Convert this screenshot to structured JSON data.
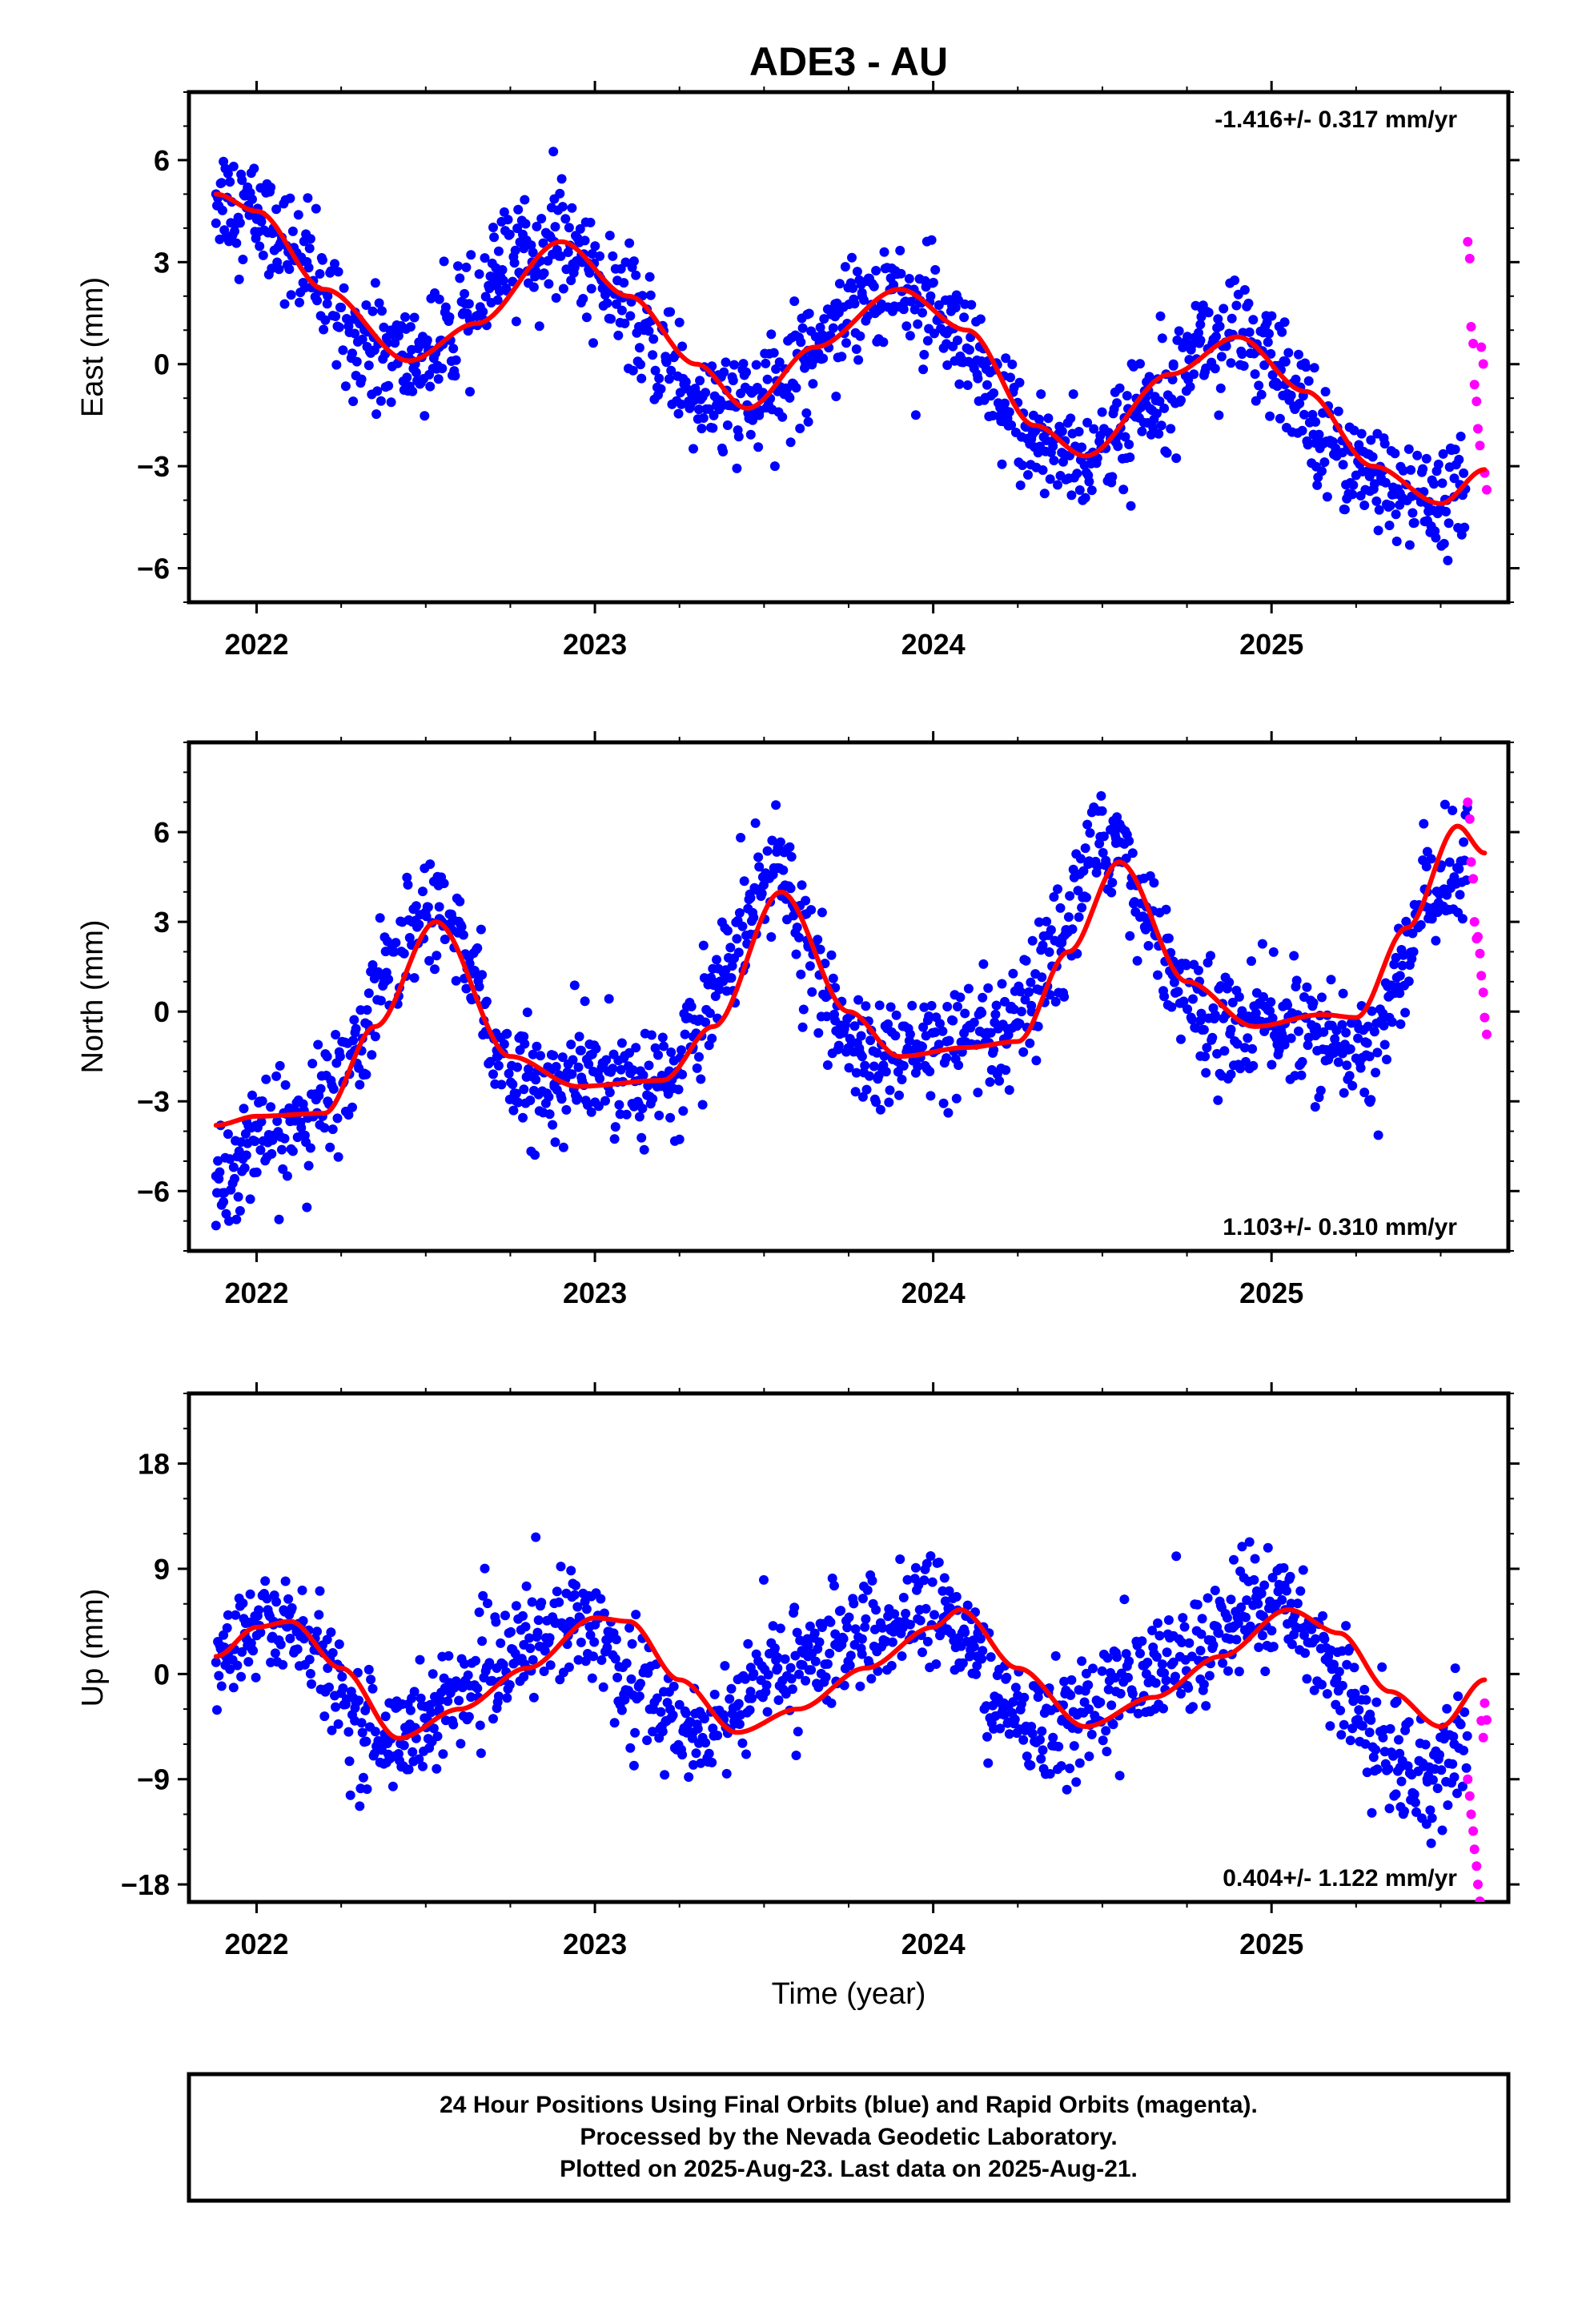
{
  "title": "ADE3 - AU",
  "footer": {
    "lines": [
      "24 Hour Positions Using Final Orbits (blue) and Rapid Orbits (magenta).",
      "Processed by the Nevada Geodetic Laboratory.",
      "Plotted on 2025-Aug-23. Last data on 2025-Aug-21."
    ]
  },
  "colors": {
    "final": "#0000ff",
    "rapid": "#ff00ff",
    "fit": "#ff0000",
    "frame": "#000000"
  },
  "chart_data": [
    {
      "type": "scatter",
      "ylabel": "East (mm)",
      "xlabel": "",
      "rate_label": "-1.416+/- 0.317 mm/yr",
      "rate_position": "top-right",
      "xlim": [
        2021.8,
        2025.7
      ],
      "ylim": [
        -7,
        8
      ],
      "xticks": [
        "2022",
        "2023",
        "2024",
        "2025"
      ],
      "yticks": [
        "6",
        "3",
        "0",
        "-3",
        "-6"
      ],
      "grid": false,
      "series": [
        {
          "role": "final",
          "x": [
            2021.88,
            2021.97,
            2022.05,
            2022.13,
            2022.21,
            2022.29,
            2022.38,
            2022.46,
            2022.54,
            2022.63,
            2022.71,
            2022.79,
            2022.88,
            2022.96,
            2023.04,
            2023.13,
            2023.21,
            2023.29,
            2023.38,
            2023.46,
            2023.54,
            2023.63,
            2023.71,
            2023.79,
            2023.88,
            2023.96,
            2024.04,
            2024.13,
            2024.21,
            2024.29,
            2024.38,
            2024.46,
            2024.54,
            2024.63,
            2024.71,
            2024.79,
            2024.88,
            2024.96,
            2025.04,
            2025.13,
            2025.21,
            2025.29,
            2025.38,
            2025.46,
            2025.54
          ],
          "y": [
            5.0,
            4.6,
            4.0,
            3.0,
            2.0,
            0.9,
            0.3,
            0.1,
            0.5,
            1.3,
            2.6,
            3.4,
            3.6,
            3.2,
            2.2,
            1.1,
            0.1,
            -0.8,
            -1.2,
            -1.3,
            -0.8,
            0.4,
            1.4,
            2.0,
            2.2,
            1.8,
            0.9,
            -0.3,
            -1.4,
            -2.2,
            -2.6,
            -2.7,
            -2.3,
            -1.2,
            0.0,
            0.7,
            0.8,
            0.4,
            -0.6,
            -1.7,
            -2.6,
            -3.3,
            -3.8,
            -4.1,
            -3.9
          ]
        },
        {
          "role": "rapid",
          "x": [
            2025.58,
            2025.59,
            2025.6,
            2025.61,
            2025.62,
            2025.63
          ],
          "y": [
            3.6,
            1.1,
            -0.6,
            -1.9,
            0.5,
            -3.2
          ]
        },
        {
          "role": "fit",
          "x": [
            2021.88,
            2022.0,
            2022.2,
            2022.45,
            2022.65,
            2022.9,
            2023.1,
            2023.3,
            2023.45,
            2023.65,
            2023.9,
            2024.1,
            2024.3,
            2024.45,
            2024.7,
            2024.9,
            2025.1,
            2025.3,
            2025.5,
            2025.63
          ],
          "y": [
            5.0,
            4.5,
            2.2,
            0.1,
            1.2,
            3.6,
            2.0,
            0.0,
            -1.3,
            0.5,
            2.2,
            1.0,
            -1.8,
            -2.7,
            -0.3,
            0.8,
            -0.8,
            -3.0,
            -4.1,
            -3.1
          ]
        }
      ]
    },
    {
      "type": "scatter",
      "ylabel": "North (mm)",
      "xlabel": "",
      "rate_label": "1.103+/- 0.310 mm/yr",
      "rate_position": "bottom-right",
      "xlim": [
        2021.8,
        2025.7
      ],
      "ylim": [
        -8,
        9
      ],
      "xticks": [
        "2022",
        "2023",
        "2024",
        "2025"
      ],
      "yticks": [
        "6",
        "3",
        "0",
        "-3",
        "-6"
      ],
      "grid": false,
      "series": [
        {
          "role": "final",
          "x": [
            2021.88,
            2021.97,
            2022.05,
            2022.13,
            2022.21,
            2022.29,
            2022.38,
            2022.46,
            2022.54,
            2022.63,
            2022.71,
            2022.79,
            2022.88,
            2022.96,
            2023.04,
            2023.13,
            2023.21,
            2023.29,
            2023.38,
            2023.46,
            2023.54,
            2023.63,
            2023.71,
            2023.79,
            2023.88,
            2023.96,
            2024.04,
            2024.13,
            2024.21,
            2024.29,
            2024.38,
            2024.46,
            2024.54,
            2024.63,
            2024.71,
            2024.79,
            2024.88,
            2024.96,
            2025.04,
            2025.13,
            2025.21,
            2025.29,
            2025.38,
            2025.46,
            2025.54
          ],
          "y": [
            -5.5,
            -4.8,
            -4.2,
            -3.7,
            -3.0,
            -1.3,
            1.0,
            3.0,
            3.5,
            1.6,
            -1.3,
            -2.6,
            -2.5,
            -2.2,
            -2.0,
            -2.3,
            -2.4,
            -1.2,
            1.3,
            3.8,
            4.8,
            2.2,
            -0.3,
            -1.5,
            -1.6,
            -1.3,
            -1.0,
            -1.1,
            -1.0,
            0.2,
            2.3,
            5.0,
            5.8,
            3.5,
            1.2,
            -0.3,
            -0.6,
            -0.3,
            -0.4,
            -0.8,
            -1.4,
            -1.5,
            1.2,
            4.0,
            4.5
          ]
        },
        {
          "role": "rapid",
          "x": [
            2025.58,
            2025.59,
            2025.6,
            2025.61,
            2025.62,
            2025.63
          ],
          "y": [
            7.0,
            5.0,
            3.0,
            2.5,
            1.2,
            -0.2
          ]
        },
        {
          "role": "fit",
          "x": [
            2021.88,
            2022.0,
            2022.2,
            2022.35,
            2022.53,
            2022.75,
            2022.95,
            2023.2,
            2023.35,
            2023.55,
            2023.75,
            2023.9,
            2024.1,
            2024.25,
            2024.4,
            2024.55,
            2024.75,
            2024.95,
            2025.15,
            2025.25,
            2025.4,
            2025.55,
            2025.63
          ],
          "y": [
            -3.8,
            -3.5,
            -3.4,
            -0.5,
            3.0,
            -1.5,
            -2.5,
            -2.3,
            -0.5,
            4.0,
            0.0,
            -1.5,
            -1.2,
            -1.0,
            2.0,
            5.0,
            1.0,
            -0.5,
            -0.1,
            -0.2,
            2.8,
            6.2,
            5.3
          ]
        }
      ]
    },
    {
      "type": "scatter",
      "ylabel": "Up (mm)",
      "xlabel": "Time (year)",
      "rate_label": "0.404+/- 1.122 mm/yr",
      "rate_position": "bottom-right",
      "xlim": [
        2021.8,
        2025.7
      ],
      "ylim": [
        -19.5,
        24
      ],
      "xticks": [
        "2022",
        "2023",
        "2024",
        "2025"
      ],
      "yticks": [
        "18",
        "9",
        "0",
        "-9",
        "-18"
      ],
      "grid": false,
      "series": [
        {
          "role": "final",
          "x": [
            2021.88,
            2021.97,
            2022.05,
            2022.13,
            2022.21,
            2022.29,
            2022.38,
            2022.46,
            2022.54,
            2022.63,
            2022.71,
            2022.79,
            2022.88,
            2022.96,
            2023.04,
            2023.13,
            2023.21,
            2023.29,
            2023.38,
            2023.46,
            2023.54,
            2023.63,
            2023.71,
            2023.79,
            2023.88,
            2023.96,
            2024.04,
            2024.13,
            2024.21,
            2024.29,
            2024.38,
            2024.46,
            2024.54,
            2024.63,
            2024.71,
            2024.79,
            2024.88,
            2024.96,
            2025.04,
            2025.13,
            2025.21,
            2025.29,
            2025.38,
            2025.46,
            2025.54
          ],
          "y": [
            1.0,
            3.0,
            4.5,
            4.0,
            0.5,
            -4.0,
            -5.5,
            -5.0,
            -3.0,
            -1.0,
            0.5,
            2.5,
            4.5,
            4.5,
            3.0,
            -1.0,
            -4.0,
            -5.0,
            -3.5,
            -1.5,
            0.5,
            1.5,
            2.5,
            3.0,
            4.0,
            5.5,
            5.0,
            1.5,
            -3.5,
            -4.5,
            -4.0,
            -3.0,
            -1.5,
            0.0,
            1.0,
            2.0,
            4.0,
            6.0,
            5.5,
            3.0,
            -1.0,
            -5.0,
            -8.0,
            -9.0,
            -6.0
          ]
        },
        {
          "role": "rapid",
          "x": [
            2025.58,
            2025.59,
            2025.6,
            2025.61,
            2025.62,
            2025.63
          ],
          "y": [
            -9.0,
            -12.0,
            -15.0,
            -18.0,
            -4.0,
            -2.5
          ]
        },
        {
          "role": "fit",
          "x": [
            2021.88,
            2022.0,
            2022.1,
            2022.25,
            2022.42,
            2022.6,
            2022.8,
            2023.0,
            2023.1,
            2023.25,
            2023.42,
            2023.6,
            2023.8,
            2024.0,
            2024.08,
            2024.25,
            2024.45,
            2024.65,
            2024.85,
            2025.05,
            2025.2,
            2025.35,
            2025.5,
            2025.63
          ],
          "y": [
            1.5,
            4.0,
            4.5,
            0.5,
            -5.5,
            -3.0,
            0.5,
            4.8,
            4.5,
            -0.5,
            -5.0,
            -3.0,
            0.5,
            4.0,
            5.5,
            0.5,
            -4.5,
            -2.0,
            1.5,
            5.5,
            3.5,
            -1.5,
            -4.5,
            -0.5
          ]
        }
      ]
    }
  ]
}
